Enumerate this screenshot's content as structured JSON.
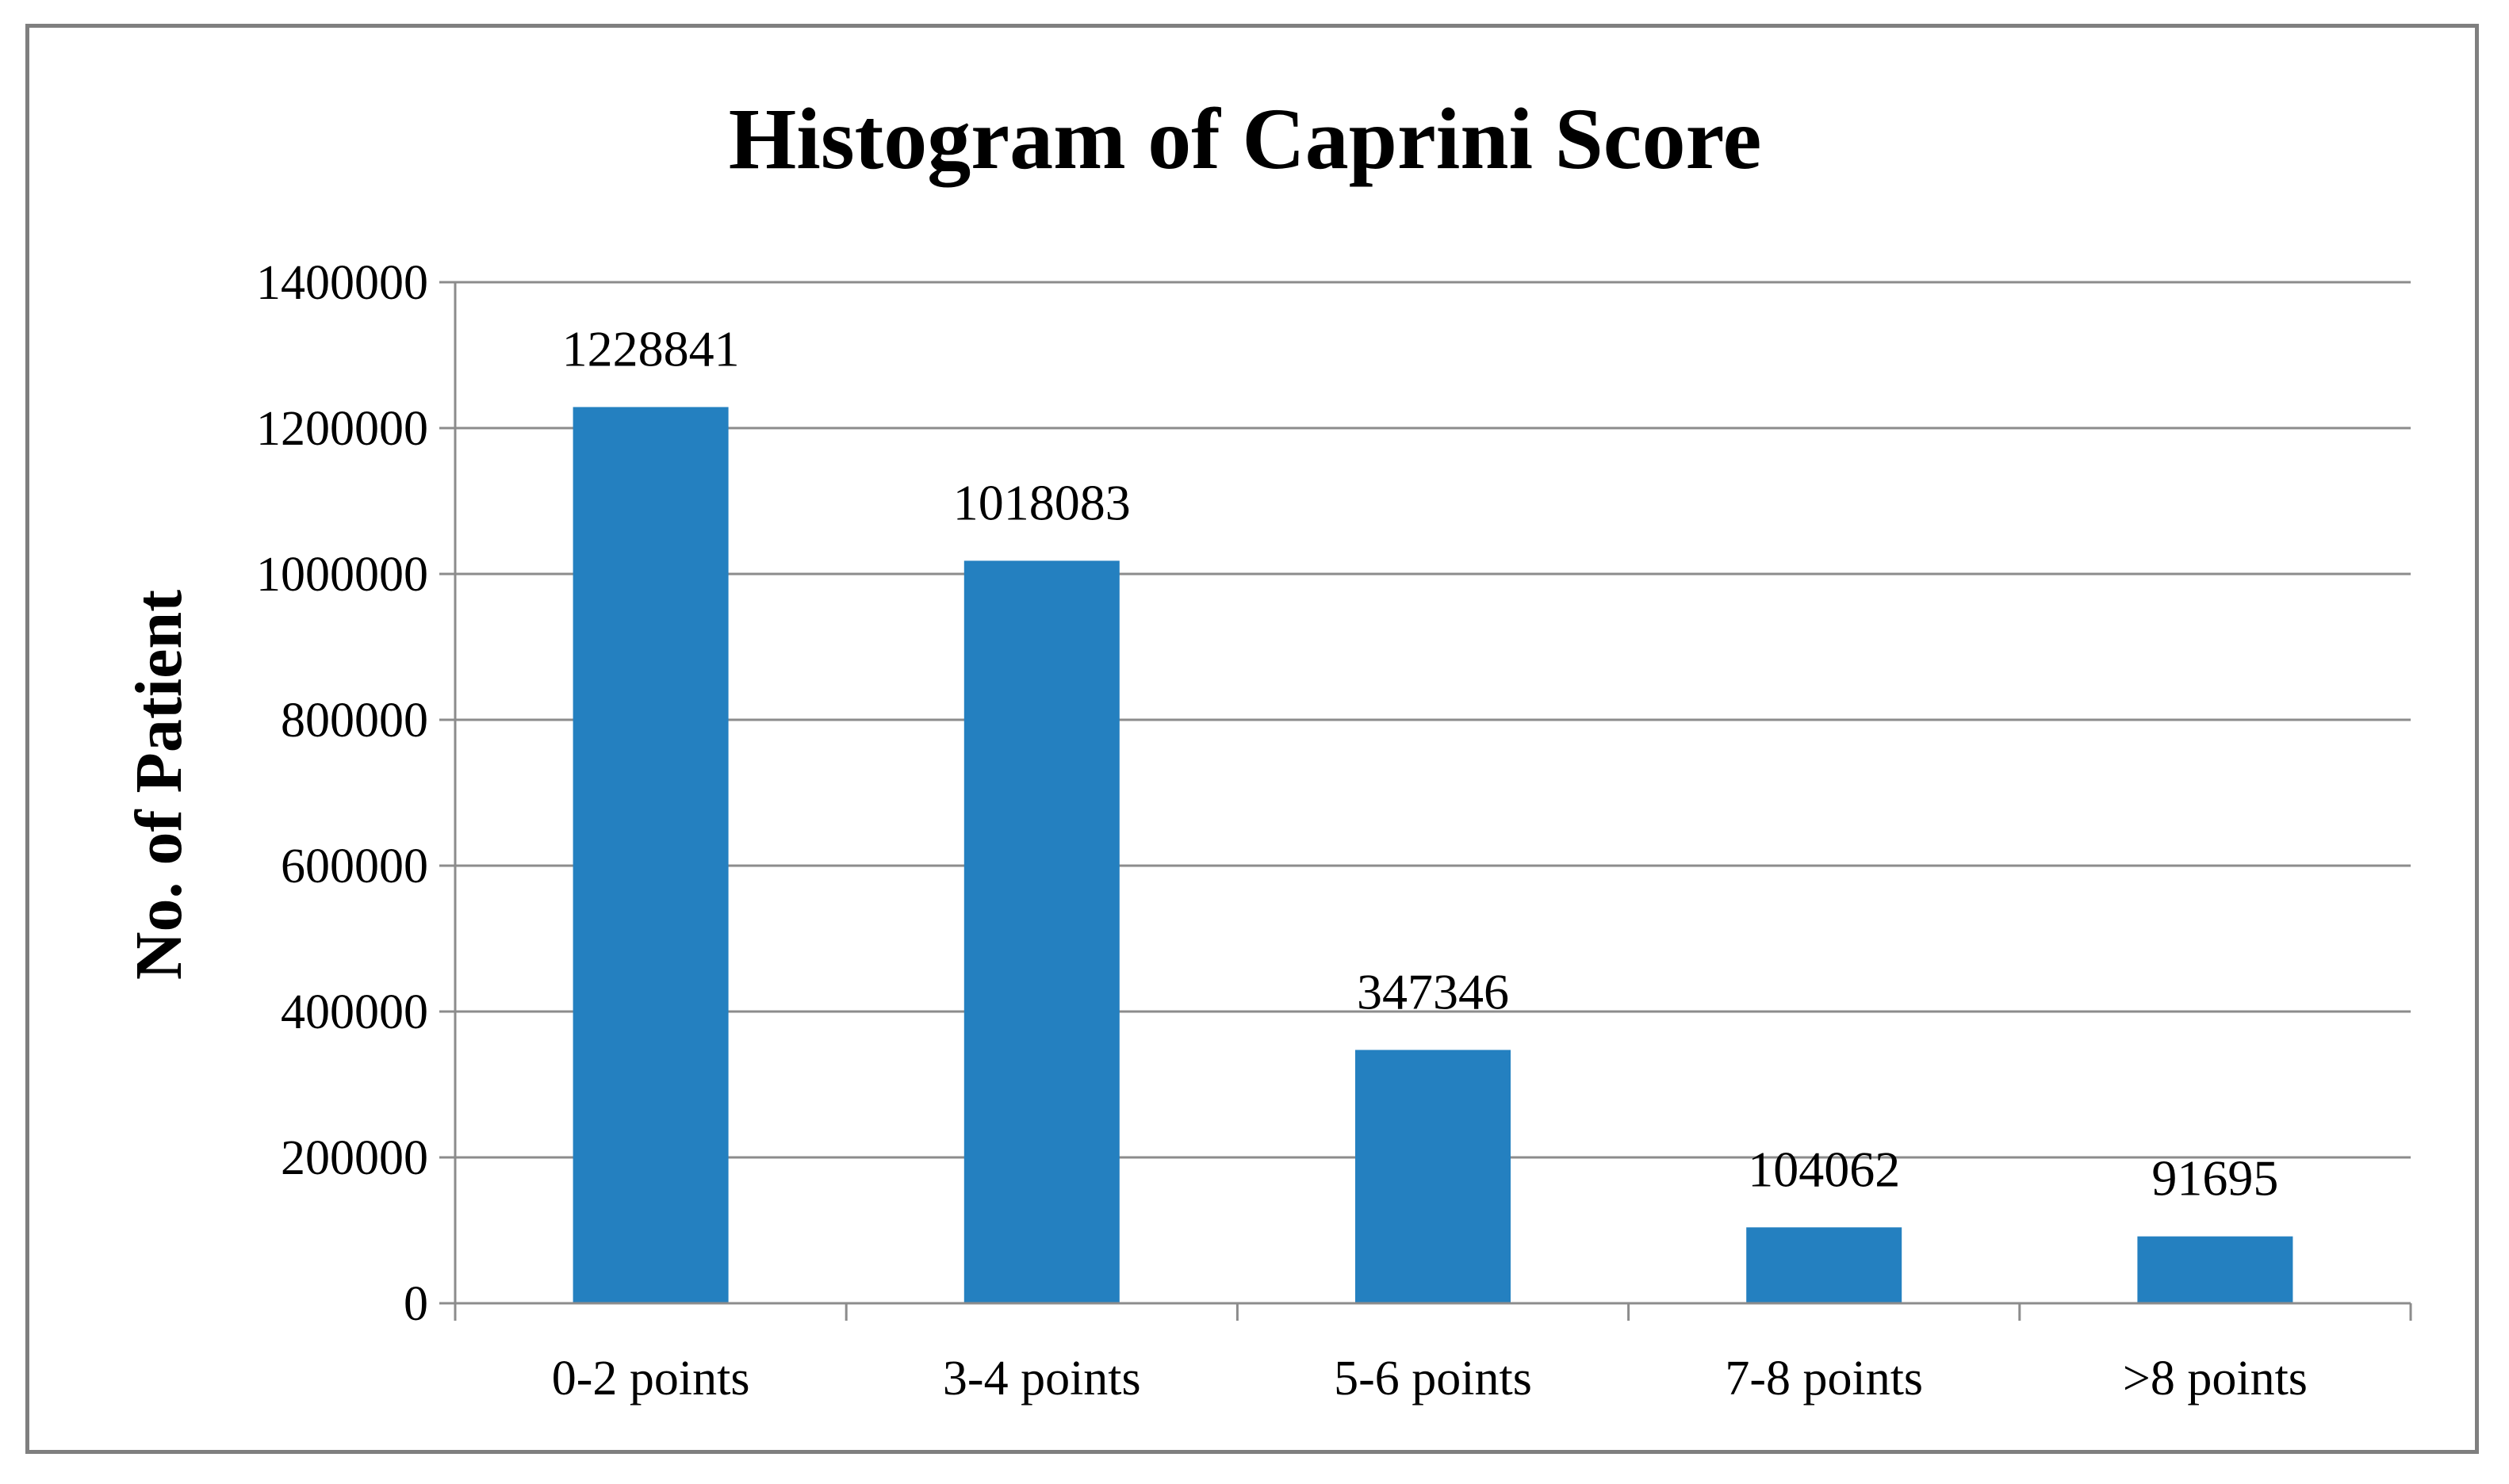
{
  "chart_data": {
    "type": "bar",
    "title": "Histogram of Caprini Score",
    "xlabel": "",
    "ylabel": "No. of Patient",
    "categories": [
      "0-2 points",
      "3-4 points",
      "5-6 points",
      "7-8 points",
      ">8 points"
    ],
    "values": [
      1228841,
      1018083,
      347346,
      104062,
      91695
    ],
    "data_labels": [
      "1228841",
      "1018083",
      "347346",
      "104062",
      "91695"
    ],
    "ylim": [
      0,
      1400000
    ],
    "yticks": [
      0,
      200000,
      400000,
      600000,
      800000,
      1000000,
      1200000,
      1400000
    ],
    "ytick_labels": [
      "0",
      "200000",
      "400000",
      "600000",
      "800000",
      "1000000",
      "1200000",
      "1400000"
    ],
    "grid": true,
    "legend": "none",
    "bar_color": "#2480c0"
  }
}
